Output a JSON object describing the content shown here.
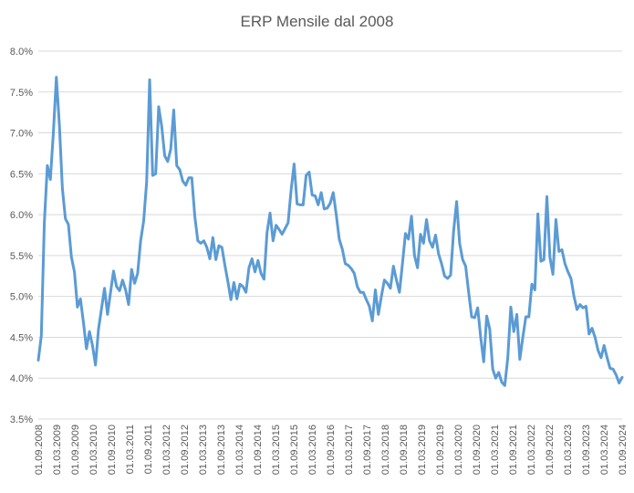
{
  "chart_data": {
    "type": "line",
    "title": "ERP Mensile dal 2008",
    "xlabel": "",
    "ylabel": "",
    "ylim": [
      0.035,
      0.08
    ],
    "y_ticks": [
      "3.5%",
      "4.0%",
      "4.5%",
      "5.0%",
      "5.5%",
      "6.0%",
      "6.5%",
      "7.0%",
      "7.5%",
      "8.0%"
    ],
    "x_ticks": [
      "01.09.2008",
      "01.03.2009",
      "01.09.2009",
      "01.03.2010",
      "01.09.2010",
      "01.03.2011",
      "01.09.2011",
      "01.03.2012",
      "01.09.2012",
      "01.03.2013",
      "01.09.2013",
      "01.03.2014",
      "01.09.2014",
      "01.03.2015",
      "01.09.2015",
      "01.03.2016",
      "01.09.2016",
      "01.03.2017",
      "01.09.2017",
      "01.03.2018",
      "01.09.2018",
      "01.03.2019",
      "01.09.2019",
      "01.03.2020",
      "01.09.2020",
      "01.03.2021",
      "01.09.2021",
      "01.03.2022",
      "01.09.2022",
      "01.03.2023",
      "01.09.2023",
      "01.03.2024",
      "01.09.2024"
    ],
    "grid": true,
    "legend": "none",
    "line_color": "#5B9BD5",
    "series": [
      {
        "values": [
          0.0422,
          0.0452,
          0.059,
          0.066,
          0.0643,
          0.07,
          0.0768,
          0.071,
          0.0632,
          0.0595,
          0.0588,
          0.0548,
          0.053,
          0.0487,
          0.0497,
          0.0468,
          0.0436,
          0.0457,
          0.044,
          0.0416,
          0.046,
          0.0485,
          0.051,
          0.0478,
          0.0505,
          0.0531,
          0.0512,
          0.0507,
          0.052,
          0.0508,
          0.049,
          0.0533,
          0.0516,
          0.0528,
          0.0568,
          0.0592,
          0.064,
          0.0765,
          0.0648,
          0.065,
          0.0732,
          0.0708,
          0.0672,
          0.0665,
          0.068,
          0.0728,
          0.066,
          0.0655,
          0.0641,
          0.0636,
          0.0645,
          0.0645,
          0.0598,
          0.0568,
          0.0565,
          0.0568,
          0.056,
          0.0546,
          0.0572,
          0.0545,
          0.0562,
          0.056,
          0.0538,
          0.0518,
          0.0496,
          0.0517,
          0.0497,
          0.0515,
          0.0512,
          0.0505,
          0.0535,
          0.0546,
          0.053,
          0.0544,
          0.0528,
          0.0521,
          0.0578,
          0.0602,
          0.0568,
          0.0587,
          0.0582,
          0.0576,
          0.0583,
          0.059,
          0.063,
          0.0662,
          0.0613,
          0.0612,
          0.0612,
          0.0648,
          0.0652,
          0.0624,
          0.0623,
          0.0612,
          0.0627,
          0.0607,
          0.0608,
          0.0614,
          0.0627,
          0.06,
          0.057,
          0.0558,
          0.054,
          0.0538,
          0.0534,
          0.0528,
          0.0512,
          0.0505,
          0.0505,
          0.0496,
          0.0488,
          0.047,
          0.0508,
          0.0478,
          0.05,
          0.052,
          0.0516,
          0.051,
          0.0537,
          0.052,
          0.0505,
          0.054,
          0.0577,
          0.057,
          0.0598,
          0.055,
          0.0535,
          0.0576,
          0.0565,
          0.0594,
          0.0568,
          0.056,
          0.0575,
          0.0552,
          0.054,
          0.0525,
          0.0522,
          0.0526,
          0.058,
          0.0616,
          0.0565,
          0.0545,
          0.0537,
          0.0505,
          0.0475,
          0.0474,
          0.0486,
          0.045,
          0.042,
          0.0476,
          0.046,
          0.0411,
          0.04,
          0.0407,
          0.0395,
          0.0391,
          0.0425,
          0.0487,
          0.0457,
          0.0478,
          0.0423,
          0.045,
          0.0475,
          0.0475,
          0.0515,
          0.0508,
          0.0601,
          0.0543,
          0.0545,
          0.0622,
          0.0548,
          0.0527,
          0.0594,
          0.0555,
          0.0557,
          0.054,
          0.053,
          0.0522,
          0.05,
          0.0484,
          0.049,
          0.0486,
          0.0488,
          0.0454,
          0.0461,
          0.045,
          0.0434,
          0.0425,
          0.044,
          0.0425,
          0.0412,
          0.0411,
          0.0404,
          0.0394,
          0.0401
        ]
      }
    ]
  }
}
